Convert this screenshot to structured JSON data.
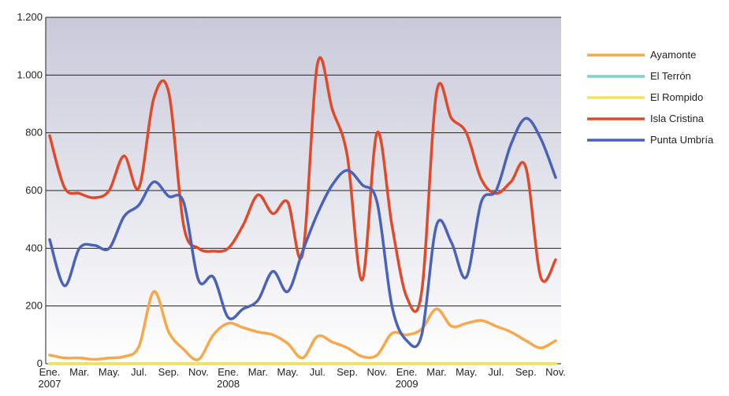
{
  "chart_data": {
    "type": "line",
    "categories": [
      "Ene. 2007",
      null,
      "Mar.",
      null,
      "May.",
      null,
      "Jul.",
      null,
      "Sep.",
      null,
      "Nov.",
      null,
      "Ene. 2008",
      null,
      "Mar.",
      null,
      "May.",
      null,
      "Jul.",
      null,
      "Sep.",
      null,
      "Nov.",
      null,
      "Ene. 2009",
      null,
      "Mar.",
      null,
      "May.",
      null,
      "Jul.",
      null,
      "Sep.",
      null,
      "Nov."
    ],
    "series": [
      {
        "name": "Ayamonte",
        "color": "#f7a84a",
        "values": [
          30,
          20,
          20,
          15,
          20,
          25,
          60,
          250,
          110,
          50,
          15,
          100,
          140,
          125,
          110,
          100,
          70,
          20,
          95,
          75,
          55,
          25,
          30,
          105,
          100,
          120,
          190,
          130,
          140,
          150,
          130,
          110,
          80,
          55,
          80
        ]
      },
      {
        "name": "El Terrón",
        "color": "#7fd1c4",
        "values": [
          0,
          0,
          0,
          0,
          0,
          0,
          0,
          0,
          0,
          0,
          0,
          0,
          0,
          0,
          0,
          0,
          0,
          0,
          0,
          0,
          0,
          0,
          0,
          0,
          0,
          0,
          0,
          0,
          0,
          0,
          0,
          0,
          0,
          0,
          0
        ]
      },
      {
        "name": "El Rompido",
        "color": "#f2e35a",
        "values": [
          0,
          0,
          0,
          0,
          0,
          0,
          0,
          0,
          0,
          0,
          0,
          0,
          0,
          0,
          0,
          0,
          0,
          0,
          0,
          0,
          0,
          0,
          0,
          0,
          0,
          0,
          0,
          0,
          0,
          0,
          0,
          0,
          0,
          0,
          0
        ]
      },
      {
        "name": "Isla Cristina",
        "color": "#e04a2a",
        "values": [
          790,
          610,
          590,
          575,
          600,
          720,
          610,
          920,
          940,
          480,
          400,
          390,
          400,
          480,
          585,
          520,
          560,
          380,
          1040,
          880,
          720,
          290,
          800,
          480,
          230,
          250,
          940,
          850,
          800,
          640,
          590,
          630,
          680,
          300,
          360
        ]
      },
      {
        "name": "Punta Umbría",
        "color": "#4a63b8",
        "values": [
          430,
          270,
          400,
          410,
          400,
          510,
          550,
          630,
          580,
          560,
          290,
          300,
          160,
          190,
          220,
          320,
          250,
          390,
          520,
          620,
          670,
          620,
          560,
          200,
          80,
          100,
          480,
          420,
          300,
          560,
          600,
          760,
          850,
          780,
          645
        ]
      }
    ],
    "ylim": [
      0,
      1200
    ],
    "yticks": [
      0,
      200,
      400,
      600,
      800,
      {
        "value": 1000,
        "label": "1.000"
      },
      {
        "value": 1200,
        "label": "1.200"
      }
    ],
    "grid": true,
    "legend": "right"
  }
}
